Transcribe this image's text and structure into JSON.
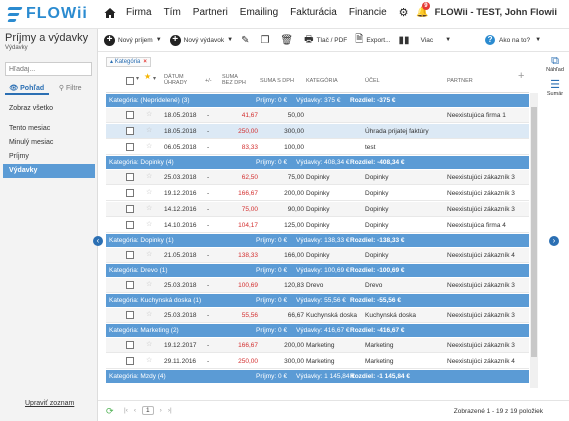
{
  "app": {
    "logo_text": "FLOWii",
    "user_label": "FLOWii - TEST, John Flowii",
    "notifications": "9"
  },
  "nav": {
    "items": [
      "Firma",
      "Tím",
      "Partneri",
      "Emailing",
      "Fakturácia",
      "Financie"
    ]
  },
  "sidebar": {
    "title": "Príjmy a výdavky",
    "subtitle": "Výdavky",
    "search_placeholder": "Hľadaj...",
    "tabs": [
      "Pohľad",
      "Filtre"
    ],
    "items": [
      "Zobraz všetko",
      "Tento mesiac",
      "Minulý mesiac",
      "Príjmy",
      "Výdavky"
    ],
    "selected": 4,
    "manage_link": "Upraviť zoznam"
  },
  "toolbar": {
    "new_income": "Nový príjem",
    "new_expense": "Nový výdavok",
    "print": "Tlač / PDF",
    "export": "Export...",
    "more": "Viac",
    "help": "Ako na to?"
  },
  "filter_chip": "Kategória",
  "right_panel": {
    "preview": "Náhľad",
    "summary": "Sumár"
  },
  "table": {
    "headers": {
      "date": [
        "Dátum",
        "úhrady"
      ],
      "plusminus": "+/-",
      "amount_net": [
        "Suma",
        "bez DPH"
      ],
      "amount_vat": "Suma s DPH",
      "category": "Kategória",
      "purpose": "Účel",
      "partner": "Partner"
    },
    "rows": [
      {
        "kind": "group",
        "label": "Kategória: (Nepridelené) (3)",
        "income": "Príjmy: 0 €",
        "expense": "Výdavky: 375 €",
        "diff": "Rozdiel: -375 €"
      },
      {
        "kind": "row",
        "date": "18.05.2018",
        "pm": "-",
        "net": "41,67",
        "vat": "50,00",
        "category": "",
        "purpose": "",
        "partner": "Neexistujúca firma 1",
        "style": "alt"
      },
      {
        "kind": "row",
        "date": "18.05.2018",
        "pm": "-",
        "net": "250,00",
        "vat": "300,00",
        "category": "",
        "purpose": "Úhrada prijatej faktúry",
        "partner": "",
        "style": "hl"
      },
      {
        "kind": "row",
        "date": "06.05.2018",
        "pm": "-",
        "net": "83,33",
        "vat": "100,00",
        "category": "",
        "purpose": "test",
        "partner": "",
        "style": ""
      },
      {
        "kind": "group",
        "label": "Kategória: Dopinky (4)",
        "income": "Príjmy: 0 €",
        "expense": "Výdavky: 408,34 €",
        "diff": "Rozdiel: -408,34 €"
      },
      {
        "kind": "row",
        "date": "25.03.2018",
        "pm": "-",
        "net": "62,50",
        "vat": "75,00",
        "category": "Dopinky",
        "purpose": "Dopinky",
        "partner": "Neexistujúci zákazník 3",
        "style": "alt"
      },
      {
        "kind": "row",
        "date": "19.12.2016",
        "pm": "-",
        "net": "166,67",
        "vat": "200,00",
        "category": "Dopinky",
        "purpose": "Dopinky",
        "partner": "Neexistujúci zákazník 3",
        "style": ""
      },
      {
        "kind": "row",
        "date": "14.12.2016",
        "pm": "-",
        "net": "75,00",
        "vat": "90,00",
        "category": "Dopinky",
        "purpose": "Dopinky",
        "partner": "Neexistujúci zákazník 3",
        "style": "alt"
      },
      {
        "kind": "row",
        "date": "14.10.2016",
        "pm": "-",
        "net": "104,17",
        "vat": "125,00",
        "category": "Dopinky",
        "purpose": "Dopinky",
        "partner": "Neexistujúca firma 4",
        "style": ""
      },
      {
        "kind": "group",
        "label": "Kategória: Dopinky (1)",
        "income": "Príjmy: 0 €",
        "expense": "Výdavky: 138,33 €",
        "diff": "Rozdiel: -138,33 €"
      },
      {
        "kind": "row",
        "date": "21.05.2018",
        "pm": "-",
        "net": "138,33",
        "vat": "166,00",
        "category": "Dopinky",
        "purpose": "Dopinky",
        "partner": "Neexistujúci zákazník 4",
        "style": "alt"
      },
      {
        "kind": "group",
        "label": "Kategória: Drevo (1)",
        "income": "Príjmy: 0 €",
        "expense": "Výdavky: 100,69 €",
        "diff": "Rozdiel: -100,69 €"
      },
      {
        "kind": "row",
        "date": "25.03.2018",
        "pm": "-",
        "net": "100,69",
        "vat": "120,83",
        "category": "Drevo",
        "purpose": "Drevo",
        "partner": "Neexistujúci zákazník 3",
        "style": "alt"
      },
      {
        "kind": "group",
        "label": "Kategória: Kuchynská doska (1)",
        "income": "Príjmy: 0 €",
        "expense": "Výdavky: 55,56 €",
        "diff": "Rozdiel: -55,56 €"
      },
      {
        "kind": "row",
        "date": "25.03.2018",
        "pm": "-",
        "net": "55,56",
        "vat": "66,67",
        "category": "Kuchynská doska",
        "purpose": "Kuchynská doska",
        "partner": "Neexistujúci zákazník 3",
        "style": "alt"
      },
      {
        "kind": "group",
        "label": "Kategória: Marketing (2)",
        "income": "Príjmy: 0 €",
        "expense": "Výdavky: 416,67 €",
        "diff": "Rozdiel: -416,67 €"
      },
      {
        "kind": "row",
        "date": "19.12.2017",
        "pm": "-",
        "net": "166,67",
        "vat": "200,00",
        "category": "Marketing",
        "purpose": "Marketing",
        "partner": "Neexistujúci zákazník 3",
        "style": "alt"
      },
      {
        "kind": "row",
        "date": "29.11.2016",
        "pm": "-",
        "net": "250,00",
        "vat": "300,00",
        "category": "Marketing",
        "purpose": "Marketing",
        "partner": "Neexistujúci zákazník 4",
        "style": ""
      },
      {
        "kind": "group",
        "label": "Kategória: Mzdy (4)",
        "income": "Príjmy: 0 €",
        "expense": "Výdavky: 1 145,84 €",
        "diff": "Rozdiel: -1 145,84 €"
      }
    ]
  },
  "footer": {
    "page": "1",
    "info": "Zobrazené 1 - 19 z 19 položiek"
  },
  "colors": {
    "accent": "#2b8bd0",
    "group_bar": "#5b9bd5",
    "negative": "#d32f2f"
  }
}
